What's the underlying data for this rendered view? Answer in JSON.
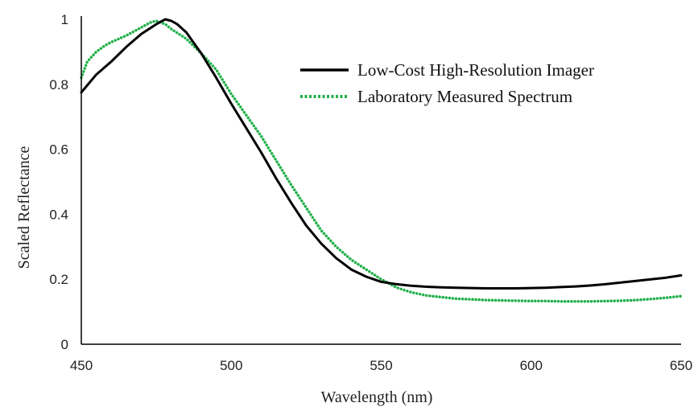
{
  "chart_data": {
    "type": "line",
    "title": "",
    "xlabel": "Wavelength (nm)",
    "ylabel": "Scaled Reflectance",
    "xlim": [
      450,
      650
    ],
    "ylim": [
      0,
      1
    ],
    "x_ticks": [
      450,
      500,
      550,
      600,
      650
    ],
    "x_tick_labels": [
      "450",
      "500",
      "550",
      "600",
      "650"
    ],
    "y_ticks": [
      0,
      0.2,
      0.4,
      0.6,
      0.8,
      1
    ],
    "y_tick_labels": [
      "0",
      "0.2",
      "0.4",
      "0.6",
      "0.8",
      "1"
    ],
    "grid": false,
    "legend_position": "top-right",
    "series": [
      {
        "name": "Low-Cost High-Resolution Imager",
        "color": "#000000",
        "style": "solid",
        "x": [
          450,
          455,
          460,
          465,
          470,
          475,
          478,
          480,
          482,
          485,
          490,
          495,
          500,
          505,
          510,
          515,
          520,
          525,
          530,
          535,
          540,
          545,
          550,
          555,
          560,
          565,
          570,
          575,
          580,
          585,
          590,
          595,
          600,
          605,
          610,
          615,
          620,
          625,
          630,
          635,
          640,
          645,
          650
        ],
        "y": [
          0.775,
          0.83,
          0.87,
          0.915,
          0.955,
          0.985,
          1.0,
          0.995,
          0.985,
          0.96,
          0.895,
          0.82,
          0.74,
          0.665,
          0.59,
          0.51,
          0.435,
          0.365,
          0.31,
          0.265,
          0.23,
          0.208,
          0.192,
          0.185,
          0.18,
          0.177,
          0.175,
          0.174,
          0.173,
          0.172,
          0.172,
          0.172,
          0.173,
          0.174,
          0.176,
          0.178,
          0.181,
          0.185,
          0.19,
          0.195,
          0.2,
          0.205,
          0.212
        ]
      },
      {
        "name": "Laboratory Measured Spectrum",
        "color": "#22b04b",
        "style": "dotted",
        "x": [
          450,
          452,
          455,
          458,
          460,
          465,
          470,
          473,
          475,
          478,
          480,
          485,
          490,
          495,
          500,
          505,
          510,
          515,
          520,
          525,
          530,
          535,
          540,
          545,
          550,
          555,
          560,
          565,
          570,
          575,
          580,
          585,
          590,
          595,
          600,
          605,
          610,
          615,
          620,
          625,
          630,
          635,
          640,
          645,
          650
        ],
        "y": [
          0.82,
          0.87,
          0.9,
          0.92,
          0.93,
          0.95,
          0.975,
          0.99,
          0.995,
          0.985,
          0.97,
          0.94,
          0.895,
          0.845,
          0.77,
          0.705,
          0.64,
          0.565,
          0.49,
          0.42,
          0.35,
          0.3,
          0.26,
          0.23,
          0.2,
          0.175,
          0.16,
          0.15,
          0.145,
          0.14,
          0.138,
          0.136,
          0.135,
          0.134,
          0.133,
          0.133,
          0.132,
          0.132,
          0.132,
          0.133,
          0.134,
          0.136,
          0.139,
          0.143,
          0.148
        ]
      }
    ]
  }
}
